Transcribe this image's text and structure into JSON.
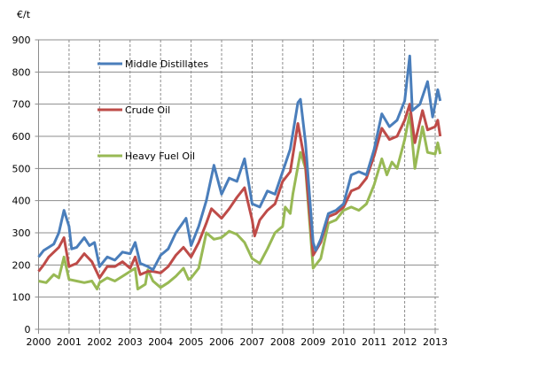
{
  "chart_data": {
    "type": "line",
    "title": "",
    "ylabel": "€/t",
    "xlabel": "",
    "ylim": [
      0,
      900
    ],
    "yticks": [
      "0",
      "100",
      "200",
      "300",
      "400",
      "500",
      "600",
      "700",
      "800",
      "900"
    ],
    "xticks": [
      "2000",
      "2001",
      "2002",
      "2003",
      "2004",
      "2005",
      "2006",
      "2007",
      "2008",
      "2009",
      "2010",
      "2011",
      "2012",
      "2013"
    ],
    "grid": true,
    "legend_position": "top-left",
    "series": [
      {
        "name": "Middle Distillates",
        "color": "#4a7ebb",
        "points": [
          [
            "2000-01",
            225
          ],
          [
            "2000-03",
            245
          ],
          [
            "2000-05",
            255
          ],
          [
            "2000-07",
            265
          ],
          [
            "2000-09",
            300
          ],
          [
            "2000-11",
            370
          ],
          [
            "2001-01",
            320
          ],
          [
            "2001-02",
            250
          ],
          [
            "2001-04",
            255
          ],
          [
            "2001-07",
            285
          ],
          [
            "2001-09",
            260
          ],
          [
            "2001-11",
            270
          ],
          [
            "2002-01",
            195
          ],
          [
            "2002-04",
            225
          ],
          [
            "2002-07",
            215
          ],
          [
            "2002-10",
            240
          ],
          [
            "2003-01",
            235
          ],
          [
            "2003-03",
            270
          ],
          [
            "2003-05",
            205
          ],
          [
            "2003-08",
            195
          ],
          [
            "2003-10",
            185
          ],
          [
            "2004-01",
            230
          ],
          [
            "2004-04",
            250
          ],
          [
            "2004-07",
            300
          ],
          [
            "2004-11",
            345
          ],
          [
            "2005-01",
            260
          ],
          [
            "2005-04",
            320
          ],
          [
            "2005-07",
            400
          ],
          [
            "2005-10",
            510
          ],
          [
            "2006-01",
            420
          ],
          [
            "2006-04",
            470
          ],
          [
            "2006-07",
            460
          ],
          [
            "2006-10",
            530
          ],
          [
            "2007-01",
            390
          ],
          [
            "2007-04",
            380
          ],
          [
            "2007-07",
            430
          ],
          [
            "2007-10",
            420
          ],
          [
            "2008-01",
            490
          ],
          [
            "2008-04",
            560
          ],
          [
            "2008-07",
            705
          ],
          [
            "2008-08",
            715
          ],
          [
            "2008-10",
            580
          ],
          [
            "2009-01",
            270
          ],
          [
            "2009-02",
            245
          ],
          [
            "2009-04",
            280
          ],
          [
            "2009-07",
            360
          ],
          [
            "2009-10",
            370
          ],
          [
            "2010-01",
            390
          ],
          [
            "2010-04",
            480
          ],
          [
            "2010-07",
            490
          ],
          [
            "2010-10",
            480
          ],
          [
            "2011-01",
            560
          ],
          [
            "2011-04",
            670
          ],
          [
            "2011-07",
            630
          ],
          [
            "2011-10",
            650
          ],
          [
            "2012-01",
            710
          ],
          [
            "2012-03",
            850
          ],
          [
            "2012-04",
            680
          ],
          [
            "2012-07",
            700
          ],
          [
            "2012-10",
            770
          ],
          [
            "2012-12",
            660
          ],
          [
            "2013-01",
            700
          ],
          [
            "2013-02",
            745
          ],
          [
            "2013-03",
            710
          ]
        ]
      },
      {
        "name": "Crude Oil",
        "color": "#be4b48",
        "points": [
          [
            "2000-01",
            180
          ],
          [
            "2000-03",
            200
          ],
          [
            "2000-05",
            225
          ],
          [
            "2000-09",
            255
          ],
          [
            "2000-11",
            285
          ],
          [
            "2001-01",
            195
          ],
          [
            "2001-04",
            205
          ],
          [
            "2001-07",
            235
          ],
          [
            "2001-10",
            210
          ],
          [
            "2002-01",
            160
          ],
          [
            "2002-04",
            195
          ],
          [
            "2002-07",
            195
          ],
          [
            "2002-10",
            210
          ],
          [
            "2003-01",
            190
          ],
          [
            "2003-03",
            225
          ],
          [
            "2003-05",
            170
          ],
          [
            "2003-08",
            180
          ],
          [
            "2003-10",
            180
          ],
          [
            "2004-01",
            175
          ],
          [
            "2004-04",
            195
          ],
          [
            "2004-07",
            230
          ],
          [
            "2004-10",
            255
          ],
          [
            "2005-01",
            225
          ],
          [
            "2005-04",
            270
          ],
          [
            "2005-07",
            330
          ],
          [
            "2005-09",
            375
          ],
          [
            "2006-01",
            345
          ],
          [
            "2006-04",
            375
          ],
          [
            "2006-07",
            410
          ],
          [
            "2006-10",
            440
          ],
          [
            "2007-01",
            340
          ],
          [
            "2007-02",
            290
          ],
          [
            "2007-04",
            340
          ],
          [
            "2007-07",
            370
          ],
          [
            "2007-10",
            390
          ],
          [
            "2008-01",
            460
          ],
          [
            "2008-04",
            490
          ],
          [
            "2008-07",
            640
          ],
          [
            "2008-10",
            510
          ],
          [
            "2009-01",
            230
          ],
          [
            "2009-04",
            270
          ],
          [
            "2009-07",
            350
          ],
          [
            "2009-10",
            360
          ],
          [
            "2010-01",
            380
          ],
          [
            "2010-04",
            430
          ],
          [
            "2010-07",
            440
          ],
          [
            "2010-10",
            470
          ],
          [
            "2011-01",
            540
          ],
          [
            "2011-04",
            625
          ],
          [
            "2011-07",
            590
          ],
          [
            "2011-10",
            600
          ],
          [
            "2012-01",
            650
          ],
          [
            "2012-03",
            700
          ],
          [
            "2012-05",
            580
          ],
          [
            "2012-08",
            680
          ],
          [
            "2012-10",
            620
          ],
          [
            "2013-01",
            630
          ],
          [
            "2013-02",
            650
          ],
          [
            "2013-03",
            600
          ]
        ]
      },
      {
        "name": "Heavy Fuel Oil",
        "color": "#98b954",
        "points": [
          [
            "2000-01",
            150
          ],
          [
            "2000-04",
            145
          ],
          [
            "2000-07",
            170
          ],
          [
            "2000-09",
            160
          ],
          [
            "2000-11",
            225
          ],
          [
            "2001-01",
            155
          ],
          [
            "2001-04",
            150
          ],
          [
            "2001-07",
            145
          ],
          [
            "2001-10",
            150
          ],
          [
            "2001-12",
            125
          ],
          [
            "2002-01",
            145
          ],
          [
            "2002-04",
            160
          ],
          [
            "2002-07",
            150
          ],
          [
            "2002-10",
            165
          ],
          [
            "2003-01",
            180
          ],
          [
            "2003-03",
            190
          ],
          [
            "2003-04",
            125
          ],
          [
            "2003-07",
            140
          ],
          [
            "2003-08",
            185
          ],
          [
            "2003-10",
            150
          ],
          [
            "2004-01",
            130
          ],
          [
            "2004-04",
            145
          ],
          [
            "2004-07",
            165
          ],
          [
            "2004-10",
            190
          ],
          [
            "2004-12",
            155
          ],
          [
            "2005-01",
            160
          ],
          [
            "2005-04",
            190
          ],
          [
            "2005-07",
            300
          ],
          [
            "2005-10",
            280
          ],
          [
            "2006-01",
            285
          ],
          [
            "2006-04",
            305
          ],
          [
            "2006-07",
            295
          ],
          [
            "2006-10",
            270
          ],
          [
            "2007-01",
            220
          ],
          [
            "2007-04",
            205
          ],
          [
            "2007-07",
            250
          ],
          [
            "2007-10",
            300
          ],
          [
            "2008-01",
            320
          ],
          [
            "2008-02",
            380
          ],
          [
            "2008-04",
            360
          ],
          [
            "2008-05",
            420
          ],
          [
            "2008-08",
            550
          ],
          [
            "2008-10",
            500
          ],
          [
            "2009-01",
            190
          ],
          [
            "2009-04",
            220
          ],
          [
            "2009-07",
            330
          ],
          [
            "2009-10",
            340
          ],
          [
            "2010-01",
            370
          ],
          [
            "2010-04",
            380
          ],
          [
            "2010-07",
            370
          ],
          [
            "2010-10",
            390
          ],
          [
            "2011-01",
            450
          ],
          [
            "2011-04",
            530
          ],
          [
            "2011-06",
            480
          ],
          [
            "2011-08",
            520
          ],
          [
            "2011-10",
            500
          ],
          [
            "2012-01",
            590
          ],
          [
            "2012-03",
            670
          ],
          [
            "2012-05",
            500
          ],
          [
            "2012-08",
            630
          ],
          [
            "2012-10",
            550
          ],
          [
            "2013-01",
            545
          ],
          [
            "2013-02",
            580
          ],
          [
            "2013-03",
            545
          ]
        ]
      }
    ]
  }
}
